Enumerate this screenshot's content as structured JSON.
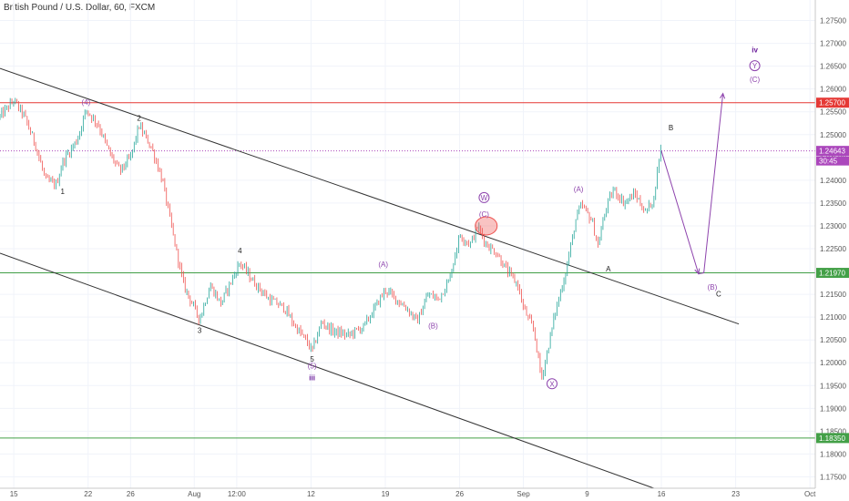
{
  "chart_data": {
    "type": "candlestick",
    "title": "British Pound / U.S. Dollar, 60, FXCM",
    "xlabel": "",
    "ylabel": "",
    "ylim": [
      1.1725,
      1.2795
    ],
    "colors": {
      "up": "#26a69a",
      "down": "#ef5350",
      "wave": "#8e44ad",
      "trend": "#333333"
    },
    "x_ticks": [
      "15",
      "22",
      "26",
      "Aug",
      "12:00",
      "12",
      "19",
      "26",
      "Sep",
      "9",
      "16",
      "23",
      "Oct"
    ],
    "x_tick_days": [
      0,
      7,
      11,
      17,
      21,
      28,
      35,
      42,
      48,
      54,
      61,
      68,
      75
    ],
    "x_range_days": [
      -1.3,
      75.5
    ],
    "y_ticks": [
      "1.27500",
      "1.27000",
      "1.26500",
      "1.26000",
      "1.25500",
      "1.25000",
      "1.24500",
      "1.24000",
      "1.23500",
      "1.23000",
      "1.22500",
      "1.22000",
      "1.21500",
      "1.21000",
      "1.20500",
      "1.20000",
      "1.19500",
      "1.19000",
      "1.18500",
      "1.18000",
      "1.17500"
    ],
    "y_tick_values": [
      1.275,
      1.27,
      1.265,
      1.26,
      1.255,
      1.25,
      1.245,
      1.24,
      1.235,
      1.23,
      1.225,
      1.22,
      1.215,
      1.21,
      1.205,
      1.2,
      1.195,
      1.19,
      1.185,
      1.18,
      1.175
    ],
    "horizontal_levels": [
      {
        "value": 1.257,
        "label": "1.25700",
        "color": "#e53935"
      },
      {
        "value": 1.2197,
        "label": "1.21970",
        "color": "#43a047"
      },
      {
        "value": 1.1835,
        "label": "1.18350",
        "color": "#43a047"
      }
    ],
    "last_price": {
      "value": 1.24643,
      "label": "1.24643",
      "countdown": "30:45",
      "color": "#ab47bc"
    },
    "price_path": [
      [
        -1.3,
        1.254
      ],
      [
        0.0,
        1.2575
      ],
      [
        1.0,
        1.254
      ],
      [
        2.0,
        1.248
      ],
      [
        3.0,
        1.24
      ],
      [
        4.0,
        1.239
      ],
      [
        4.6,
        1.244
      ],
      [
        6.0,
        1.249
      ],
      [
        6.8,
        1.2555
      ],
      [
        8.0,
        1.252
      ],
      [
        9.0,
        1.246
      ],
      [
        10.0,
        1.242
      ],
      [
        11.0,
        1.245
      ],
      [
        11.8,
        1.252
      ],
      [
        13.0,
        1.247
      ],
      [
        14.0,
        1.24
      ],
      [
        15.0,
        1.228
      ],
      [
        16.0,
        1.217
      ],
      [
        17.0,
        1.212
      ],
      [
        17.5,
        1.2095
      ],
      [
        18.5,
        1.217
      ],
      [
        19.5,
        1.213
      ],
      [
        20.5,
        1.218
      ],
      [
        21.3,
        1.222
      ],
      [
        22.5,
        1.218
      ],
      [
        24.0,
        1.214
      ],
      [
        25.5,
        1.212
      ],
      [
        26.5,
        1.208
      ],
      [
        27.5,
        1.205
      ],
      [
        28.1,
        1.2025
      ],
      [
        29.0,
        1.209
      ],
      [
        30.0,
        1.207
      ],
      [
        31.5,
        1.206
      ],
      [
        33.0,
        1.208
      ],
      [
        34.0,
        1.212
      ],
      [
        35.0,
        1.216
      ],
      [
        36.0,
        1.214
      ],
      [
        37.0,
        1.212
      ],
      [
        38.0,
        1.209
      ],
      [
        39.0,
        1.215
      ],
      [
        40.0,
        1.214
      ],
      [
        41.0,
        1.218
      ],
      [
        42.0,
        1.228
      ],
      [
        43.0,
        1.226
      ],
      [
        43.7,
        1.23
      ],
      [
        44.5,
        1.226
      ],
      [
        45.5,
        1.224
      ],
      [
        46.5,
        1.22
      ],
      [
        47.5,
        1.217
      ],
      [
        48.0,
        1.212
      ],
      [
        49.0,
        1.207
      ],
      [
        49.7,
        1.1965
      ],
      [
        50.3,
        1.203
      ],
      [
        51.0,
        1.211
      ],
      [
        52.0,
        1.22
      ],
      [
        53.0,
        1.232
      ],
      [
        53.5,
        1.2345
      ],
      [
        54.5,
        1.231
      ],
      [
        55.0,
        1.2255
      ],
      [
        55.8,
        1.234
      ],
      [
        56.5,
        1.238
      ],
      [
        57.5,
        1.235
      ],
      [
        58.5,
        1.237
      ],
      [
        59.5,
        1.233
      ],
      [
        60.3,
        1.236
      ],
      [
        60.9,
        1.247
      ],
      [
        61.0,
        1.2464
      ]
    ],
    "channel_lines": [
      {
        "from": [
          -1.3,
          1.2645
        ],
        "to": [
          68.3,
          1.2085
        ]
      },
      {
        "from": [
          -1.3,
          1.224
        ],
        "to": [
          60.3,
          1.1725
        ]
      }
    ],
    "projection": [
      [
        61.0,
        1.2464
      ],
      [
        64.5,
        1.2195
      ],
      [
        65.0,
        1.2197
      ],
      [
        66.8,
        1.259
      ]
    ],
    "wave_labels": [
      {
        "text": "(4)",
        "x": 6.8,
        "y": 1.2565,
        "color": "#8e44ad"
      },
      {
        "text": "2",
        "x": 11.8,
        "y": 1.253,
        "color": "#222222"
      },
      {
        "text": "1",
        "x": 4.6,
        "y": 1.237,
        "color": "#222222"
      },
      {
        "text": "4",
        "x": 21.3,
        "y": 1.224,
        "color": "#222222"
      },
      {
        "text": "3",
        "x": 17.5,
        "y": 1.2065,
        "color": "#222222"
      },
      {
        "text": "5",
        "x": 28.1,
        "y": 1.2002,
        "color": "#222222"
      },
      {
        "text": "(5)",
        "x": 28.1,
        "y": 1.1988,
        "color": "#8e44ad"
      },
      {
        "text": "iii",
        "x": 28.1,
        "y": 1.1962,
        "color": "#6a1b9a"
      },
      {
        "text": "(A)",
        "x": 34.8,
        "y": 1.221,
        "color": "#8e44ad"
      },
      {
        "text": "(B)",
        "x": 39.5,
        "y": 1.2075,
        "color": "#8e44ad"
      },
      {
        "text": "(C)",
        "x": 44.3,
        "y": 1.232,
        "color": "#8e44ad"
      },
      {
        "text": "W",
        "x": 44.3,
        "y": 1.2356,
        "color": "#8e44ad"
      },
      {
        "text": "X",
        "x": 50.7,
        "y": 1.1948,
        "color": "#8e44ad"
      },
      {
        "text": "(A)",
        "x": 53.2,
        "y": 1.2375,
        "color": "#8e44ad"
      },
      {
        "text": "A",
        "x": 56.0,
        "y": 1.22,
        "color": "#222222"
      },
      {
        "text": "B",
        "x": 61.9,
        "y": 1.251,
        "color": "#222222"
      },
      {
        "text": "(B)",
        "x": 65.8,
        "y": 1.216,
        "color": "#8e44ad"
      },
      {
        "text": "C",
        "x": 66.4,
        "y": 1.2145,
        "color": "#222222"
      },
      {
        "text": "(C)",
        "x": 69.8,
        "y": 1.2615,
        "color": "#8e44ad"
      },
      {
        "text": "Y",
        "x": 69.8,
        "y": 1.2645,
        "color": "#8e44ad"
      },
      {
        "text": "iv",
        "x": 69.8,
        "y": 1.268,
        "color": "#6a1b9a"
      }
    ],
    "circled_labels": [
      "W",
      "X",
      "Y"
    ],
    "bold_labels": [
      "iii",
      "iv"
    ],
    "highlight": {
      "x": 44.5,
      "y": 1.23,
      "color": "#ef5350"
    }
  }
}
